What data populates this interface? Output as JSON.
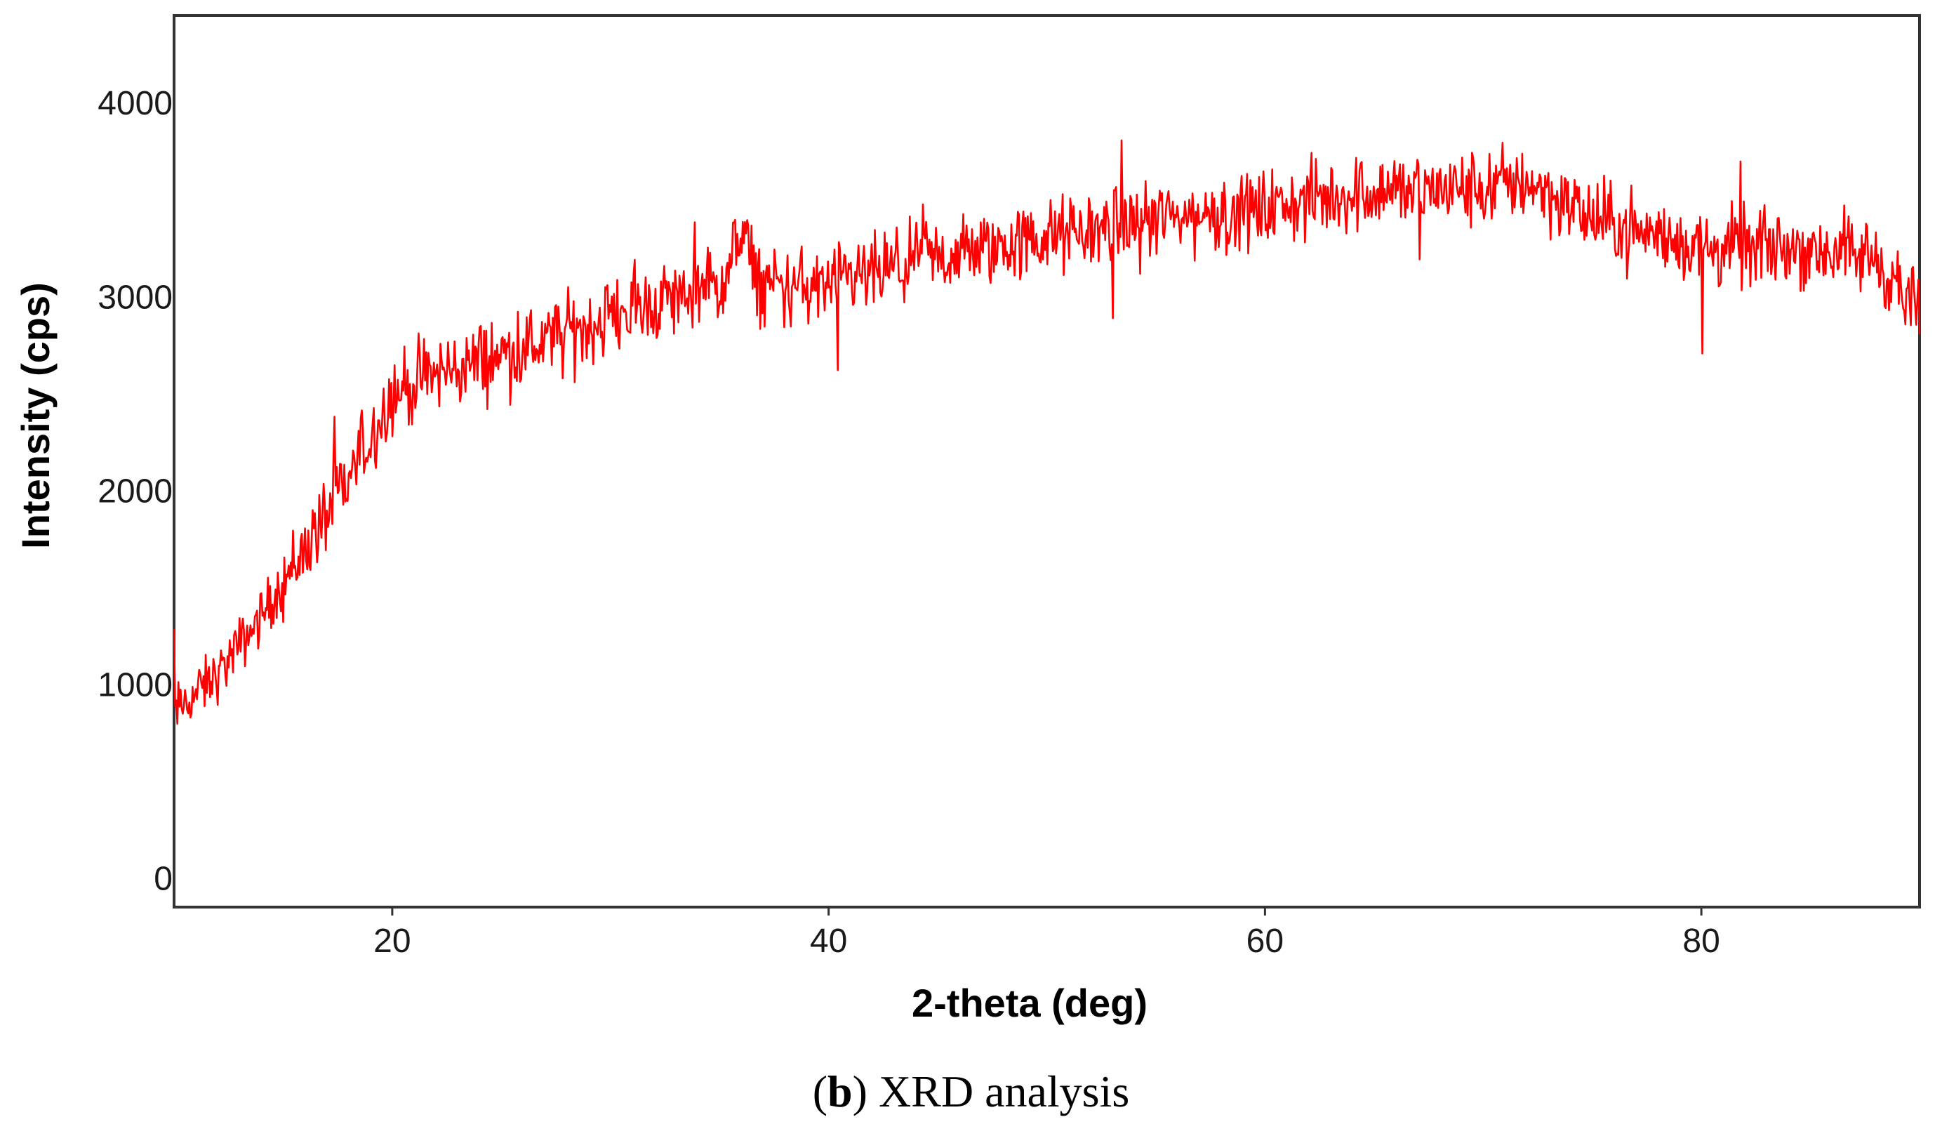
{
  "caption": {
    "letter": "b",
    "text": " XRD analysis"
  },
  "colors": {
    "series": "#ff0000",
    "frame": "#333333"
  },
  "chart_data": {
    "type": "line",
    "title": "",
    "xlabel": "2-theta (deg)",
    "ylabel": "Intensity (cps)",
    "xlim": [
      10,
      90
    ],
    "ylim": [
      -150,
      4450
    ],
    "xticks": [
      20,
      40,
      60,
      80
    ],
    "yticks": [
      0,
      1000,
      2000,
      3000,
      4000
    ],
    "grid": false,
    "legend": "none",
    "series": [
      {
        "color": "#ff0000",
        "anchors_x": [
          10,
          12,
          14,
          16,
          18,
          20,
          22,
          25,
          28,
          30,
          33,
          35,
          36,
          37,
          40,
          45,
          50,
          55,
          60,
          65,
          70,
          72,
          75,
          80,
          85,
          88,
          90
        ],
        "anchors_y": [
          850,
          1050,
          1350,
          1700,
          2050,
          2500,
          2600,
          2700,
          2800,
          2900,
          3000,
          3050,
          3300,
          3050,
          3050,
          3200,
          3300,
          3400,
          3450,
          3550,
          3550,
          3600,
          3400,
          3250,
          3250,
          3200,
          2900
        ],
        "noise_amplitude": 300,
        "points": 1600
      }
    ]
  }
}
